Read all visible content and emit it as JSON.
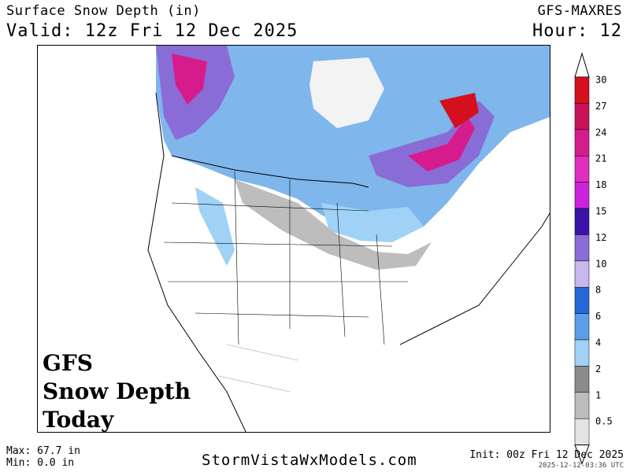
{
  "header": {
    "title": "Surface Snow Depth (in)",
    "valid": "Valid: 12z Fri 12 Dec 2025",
    "model": "GFS-MAXRES",
    "hour": "Hour: 12"
  },
  "overlay": {
    "line1": "GFS",
    "line2": "Snow Depth",
    "line3": "Today"
  },
  "legend": {
    "levels": [
      {
        "label": "30",
        "color": "#d4101e"
      },
      {
        "label": "27",
        "color": "#c8125a"
      },
      {
        "label": "24",
        "color": "#d61c8c"
      },
      {
        "label": "21",
        "color": "#e12ec0"
      },
      {
        "label": "18",
        "color": "#cc22dd"
      },
      {
        "label": "15",
        "color": "#3a14a8"
      },
      {
        "label": "12",
        "color": "#8a6cd6"
      },
      {
        "label": "10",
        "color": "#c6b8ec"
      },
      {
        "label": "8",
        "color": "#2568d8"
      },
      {
        "label": "6",
        "color": "#5c9ee8"
      },
      {
        "label": "4",
        "color": "#9fd2f6"
      },
      {
        "label": "2",
        "color": "#8a8a8a"
      },
      {
        "label": "1",
        "color": "#bdbdbd"
      },
      {
        "label": "0.5",
        "color": "#e4e4e4"
      }
    ]
  },
  "footer": {
    "max": "Max: 67.7 in",
    "min": "Min: 0.0 in",
    "site": "StormVistaWxModels.com",
    "init": "Init: 00z Fri 12 Dec 2025",
    "stamp": "2025-12-12-03:36 UTC"
  }
}
